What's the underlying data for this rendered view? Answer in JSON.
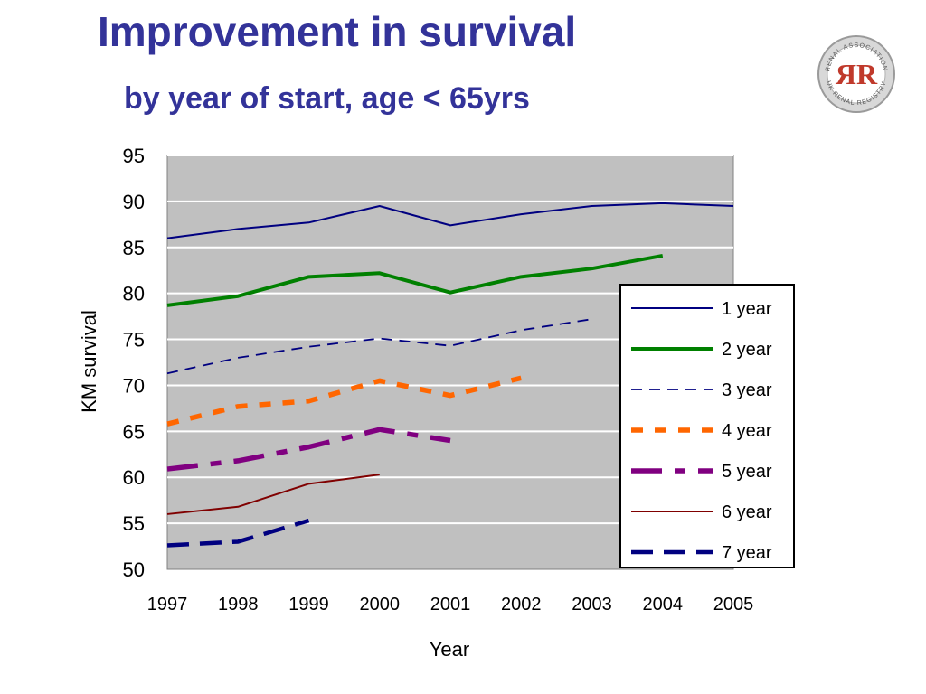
{
  "slide": {
    "title": "Improvement in survival",
    "subtitle": "by year of start, age < 65yrs"
  },
  "logo": {
    "icon": "renal-registry-logo-icon",
    "text_top": "RENAL ASSOCIATION",
    "text_bottom": "UK RENAL REGISTRY",
    "monogram": "ЯR",
    "color": "#c0392b"
  },
  "chart_data": {
    "type": "line",
    "x": [
      "1997",
      "1998",
      "1999",
      "2000",
      "2001",
      "2002",
      "2003",
      "2004",
      "2005"
    ],
    "xlabel": "Year",
    "ylabel": "KM survival",
    "ylim": [
      50,
      95
    ],
    "yticks": [
      95,
      90,
      85,
      80,
      75,
      70,
      65,
      60,
      55,
      50
    ],
    "grid": true,
    "legend_position": "right",
    "plot_background": "#c0c0c0",
    "series": [
      {
        "name": "1 year",
        "color": "#000080",
        "style": "solid-thin",
        "values": [
          86.0,
          87.0,
          87.7,
          89.5,
          87.4,
          88.6,
          89.5,
          89.8,
          89.5
        ]
      },
      {
        "name": "2 year",
        "color": "#008000",
        "style": "solid-thick",
        "values": [
          78.7,
          79.7,
          81.8,
          82.2,
          80.1,
          81.8,
          82.7,
          84.1,
          null
        ]
      },
      {
        "name": "3 year",
        "color": "#000080",
        "style": "dash-thin",
        "values": [
          71.3,
          73.0,
          74.2,
          75.1,
          74.3,
          76.0,
          77.2,
          null,
          null
        ]
      },
      {
        "name": "4 year",
        "color": "#ff6600",
        "style": "dot-thick",
        "values": [
          65.8,
          67.7,
          68.3,
          70.5,
          68.9,
          70.8,
          null,
          null,
          null
        ]
      },
      {
        "name": "5 year",
        "color": "#800080",
        "style": "dashdot-thick",
        "values": [
          60.9,
          61.8,
          63.3,
          65.2,
          64.0,
          null,
          null,
          null,
          null
        ]
      },
      {
        "name": "6 year",
        "color": "#800000",
        "style": "solid-thin",
        "values": [
          56.0,
          56.8,
          59.3,
          60.3,
          null,
          null,
          null,
          null,
          null
        ]
      },
      {
        "name": "7 year",
        "color": "#000080",
        "style": "dash-thick",
        "values": [
          52.6,
          53.0,
          55.3,
          null,
          null,
          null,
          null,
          null,
          null
        ]
      }
    ]
  }
}
